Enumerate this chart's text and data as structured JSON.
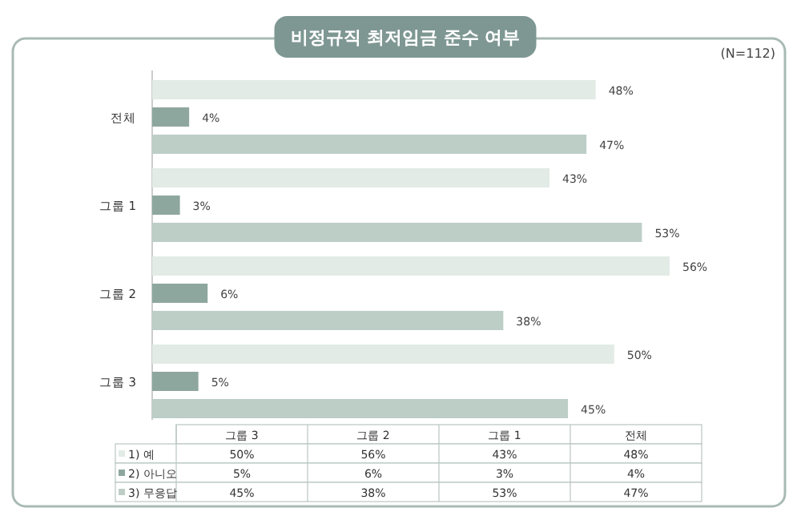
{
  "chart_data": {
    "type": "bar",
    "orientation": "horizontal",
    "title": "비정규직 최저임금 준수 여부",
    "annotations": [
      "(N=112)"
    ],
    "categories": [
      "전체",
      "그룹 1",
      "그룹 2",
      "그룹 3"
    ],
    "series": [
      {
        "name": "1) 예",
        "color": "#e2ebe6",
        "values": [
          48,
          43,
          56,
          50
        ],
        "value_labels": [
          "48%",
          "43%",
          "56%",
          "50%"
        ]
      },
      {
        "name": "2) 아니오",
        "color": "#8ea79e",
        "values": [
          4,
          3,
          6,
          5
        ],
        "value_labels": [
          "4%",
          "3%",
          "6%",
          "5%"
        ]
      },
      {
        "name": "3) 무응답",
        "color": "#bdcec7",
        "values": [
          47,
          53,
          38,
          45
        ],
        "value_labels": [
          "47%",
          "53%",
          "38%",
          "45%"
        ]
      }
    ],
    "legend": "bottom"
  }
}
